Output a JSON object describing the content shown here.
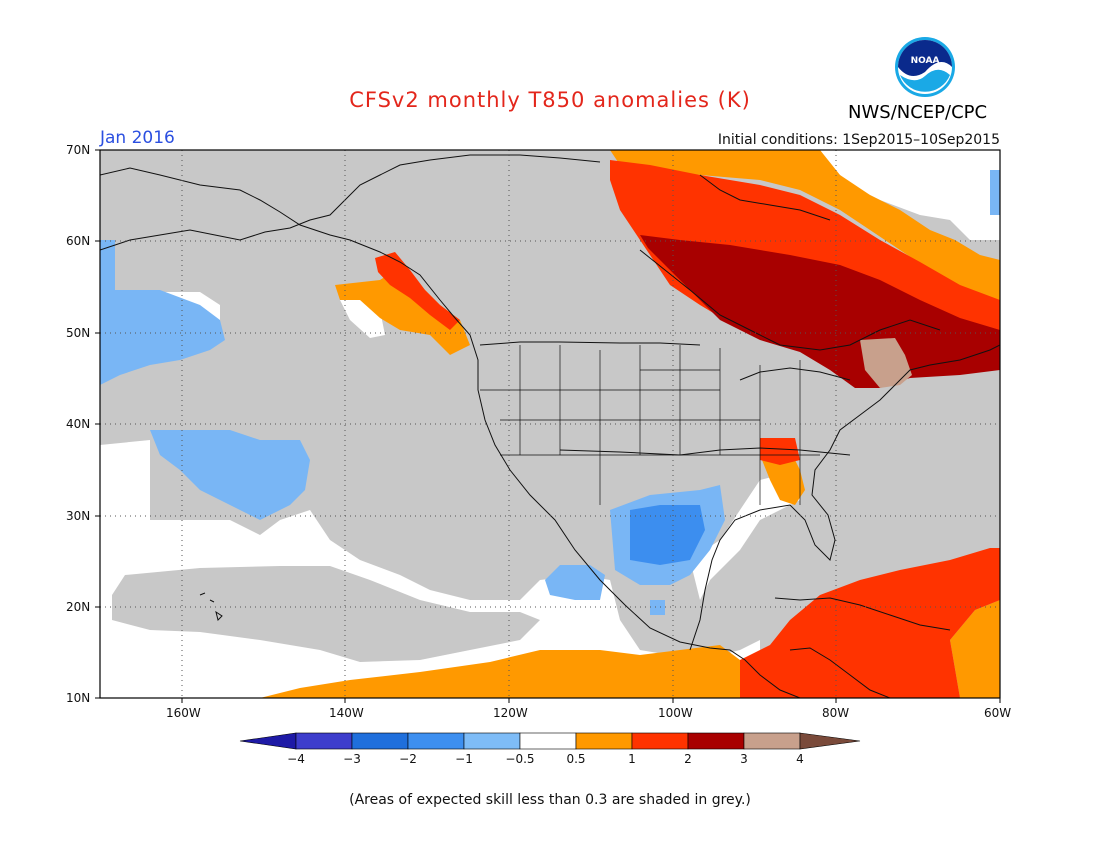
{
  "title": "CFSv2 monthly T850 anomalies (K)",
  "org": "NWS/NCEP/CPC",
  "logo_text": "NOAA",
  "month": "Jan 2016",
  "init": "Initial conditions: 1Sep2015–10Sep2015",
  "note": "(Areas of expected skill less than 0.3 are shaded in grey.)",
  "lat_labels": [
    "70N",
    "60N",
    "50N",
    "40N",
    "30N",
    "20N",
    "10N"
  ],
  "lon_labels": [
    "160W",
    "140W",
    "120W",
    "100W",
    "80W",
    "60W"
  ],
  "colorbar": {
    "ticks": [
      "−4",
      "−3",
      "−2",
      "−1",
      "−0.5",
      "0.5",
      "1",
      "2",
      "3",
      "4"
    ],
    "colors": [
      "#1e1aa6",
      "#3d3dcc",
      "#1f6fdc",
      "#3d8ff0",
      "#7ebcf7",
      "#ffffff",
      "#ff9900",
      "#ff3300",
      "#a80000",
      "#c8a08c",
      "#7a4a3a"
    ]
  },
  "palette": {
    "grey": "#c8c8c8",
    "white": "#ffffff",
    "light_blue": "#79b6f5",
    "blue": "#3c8eef",
    "orange": "#ff9900",
    "red_orange": "#ff3300",
    "dark_red": "#a80000",
    "tan": "#c8a08c"
  }
}
